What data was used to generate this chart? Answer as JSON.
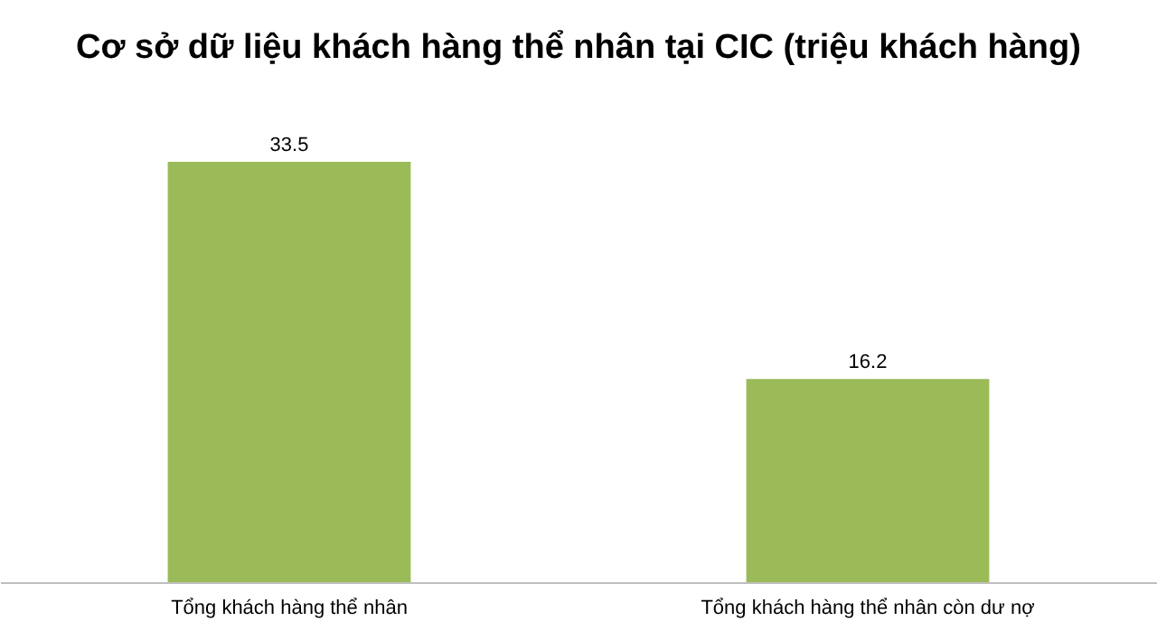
{
  "chart_data": {
    "type": "bar",
    "title": "Cơ sở dữ liệu khách hàng thể nhân tại CIC (triệu khách hàng)",
    "categories": [
      "Tổng khách hàng thể nhân",
      "Tổng  khách hàng thể nhân còn dư nợ"
    ],
    "values": [
      33.5,
      16.2
    ],
    "color": "#9bbb59",
    "data_labels": true
  }
}
